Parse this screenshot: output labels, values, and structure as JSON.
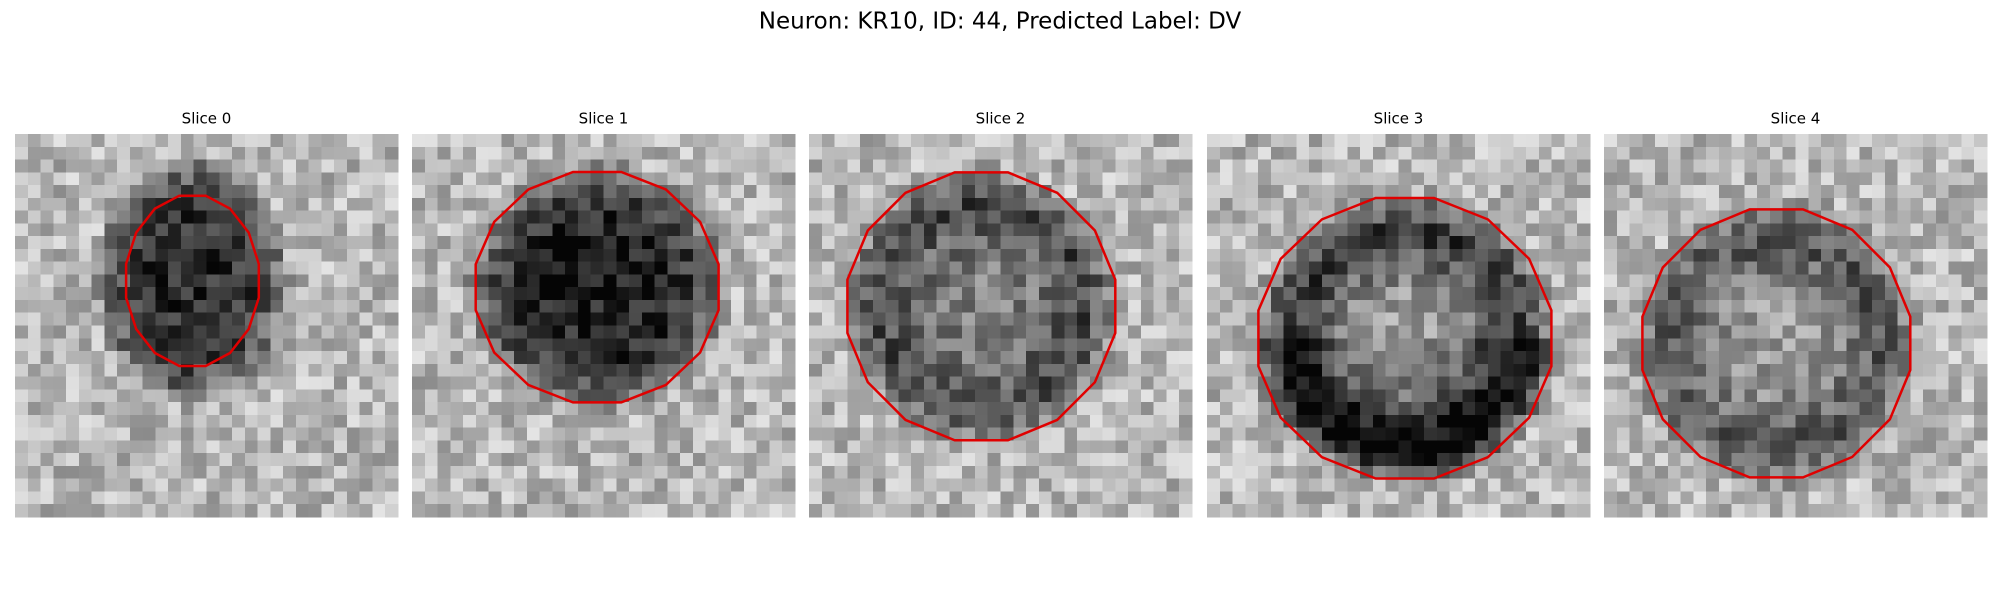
{
  "header": {
    "title": "Neuron: KR10, ID: 44, Predicted Label: DV"
  },
  "panels": [
    {
      "title": "Slice 0"
    },
    {
      "title": "Slice 1"
    },
    {
      "title": "Slice 2"
    },
    {
      "title": "Slice 3"
    },
    {
      "title": "Slice 4"
    }
  ]
}
